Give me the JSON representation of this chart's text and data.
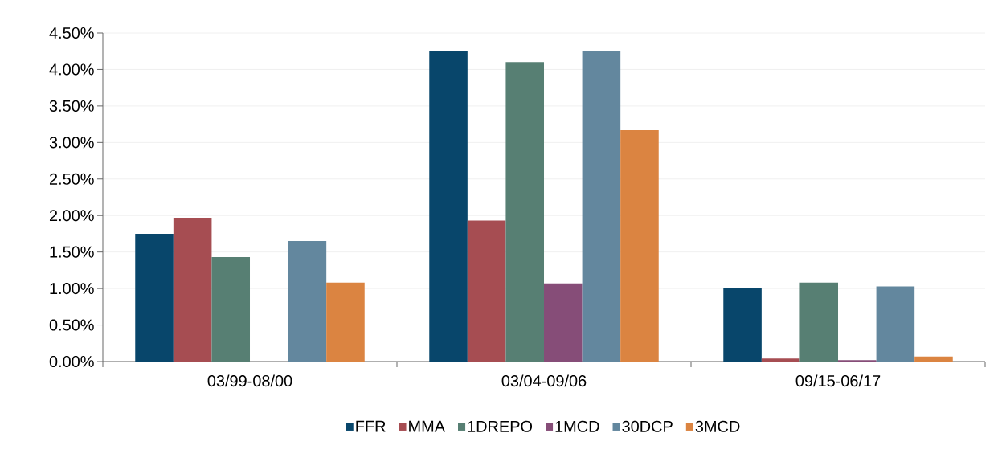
{
  "chart_data": {
    "type": "bar",
    "categories": [
      "03/99-08/00",
      "03/04-09/06",
      "09/15-06/17"
    ],
    "series": [
      {
        "name": "FFR",
        "color": "#08466b",
        "values": [
          1.75,
          4.25,
          1.0
        ]
      },
      {
        "name": "MMA",
        "color": "#a64d52",
        "values": [
          1.97,
          1.93,
          0.04
        ]
      },
      {
        "name": "1DREPO",
        "color": "#577f73",
        "values": [
          1.43,
          4.1,
          1.08
        ]
      },
      {
        "name": "1MCD",
        "color": "#864d78",
        "values": [
          null,
          1.07,
          0.02
        ]
      },
      {
        "name": "30DCP",
        "color": "#63879e",
        "values": [
          1.65,
          4.25,
          1.03
        ]
      },
      {
        "name": "3MCD",
        "color": "#db8441",
        "values": [
          1.08,
          3.17,
          0.07
        ]
      }
    ],
    "ylim": [
      0,
      4.5
    ],
    "yticks": [
      {
        "value": 0,
        "label": "0.00%"
      },
      {
        "value": 0.5,
        "label": "0.50%"
      },
      {
        "value": 1,
        "label": "1.00%"
      },
      {
        "value": 1.5,
        "label": "1.50%"
      },
      {
        "value": 2,
        "label": "2.00%"
      },
      {
        "value": 2.5,
        "label": "2.50%"
      },
      {
        "value": 3,
        "label": "3.00%"
      },
      {
        "value": 3.5,
        "label": "3.50%"
      },
      {
        "value": 4,
        "label": "4.00%"
      },
      {
        "value": 4.5,
        "label": "4.50%"
      }
    ],
    "grid": "y",
    "legend": "bottom"
  }
}
